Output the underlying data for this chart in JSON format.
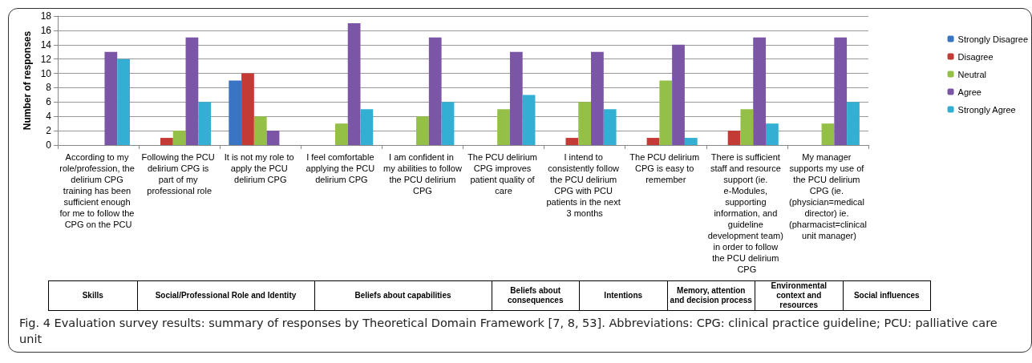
{
  "chart_data": {
    "type": "bar",
    "ylabel": "Number of responses",
    "categories": [
      "According to my role/profession, the delirium CPG training has been sufficient enough for me to follow the CPG on the PCU",
      "Following the PCU delirium CPG is part of my professional role",
      "It is not my role to apply the PCU delirium CPG",
      "I feel comfortable applying the PCU delirium CPG",
      "I am confident in my abilities to follow the PCU delirium CPG",
      "The PCU delirium CPG improves patient quality of care",
      "I intend to consistently follow the PCU delirium CPG with PCU patients in the next 3 months",
      "The PCU delirium CPG is easy to remember",
      "There is sufficient staff and resource support (ie. e-Modules, supporting information, and guideline development team) in order to follow the PCU delirium CPG",
      "My manager supports my use of the PCU delirium CPG (ie. (physician=medical director) ie. (pharmacist=clinical unit manager)"
    ],
    "series": [
      {
        "name": "Strongly Disagree",
        "color": "#3a75c4",
        "values": [
          0,
          0,
          9,
          0,
          0,
          0,
          0,
          0,
          0,
          0
        ]
      },
      {
        "name": "Disagree",
        "color": "#c43b36",
        "values": [
          0,
          1,
          10,
          0,
          0,
          0,
          1,
          1,
          2,
          0
        ]
      },
      {
        "name": "Neutral",
        "color": "#95c047",
        "values": [
          0,
          2,
          4,
          3,
          4,
          5,
          6,
          9,
          5,
          3
        ]
      },
      {
        "name": "Agree",
        "color": "#7b55a6",
        "values": [
          13,
          15,
          2,
          17,
          15,
          13,
          13,
          14,
          15,
          15
        ]
      },
      {
        "name": "Strongly Agree",
        "color": "#33afd3",
        "values": [
          12,
          6,
          0,
          5,
          6,
          7,
          5,
          1,
          3,
          6
        ]
      }
    ],
    "ylim": [
      0,
      18
    ],
    "yticks": [
      0,
      2,
      4,
      6,
      8,
      10,
      12,
      14,
      16,
      18
    ],
    "grid": "y",
    "legend": "right",
    "annotations": [
      "Skills",
      "Social/Professional Role and Identity",
      "Beliefs about capabilities",
      "Beliefs about consequences",
      "Intentions",
      "Memory, attention and decision process",
      "Environmental context and resources",
      "Social influences",
      "Fig. 4  Evaluation survey results: summary of responses by Theoretical Domain Framework [7, 8, 53]. Abbreviations: CPG: clinical practice guideline; PCU: palliative care unit"
    ]
  }
}
